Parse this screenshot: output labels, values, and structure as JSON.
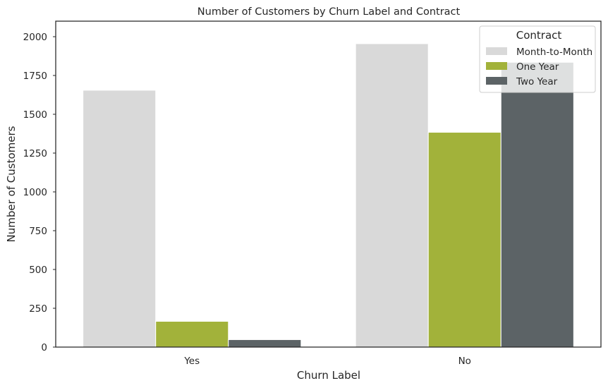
{
  "chart_data": {
    "type": "bar",
    "title": "Number of Customers by Churn Label and Contract",
    "xlabel": "Churn Label",
    "ylabel": "Number of Customers",
    "categories": [
      "Yes",
      "No"
    ],
    "series": [
      {
        "name": "Month-to-Month",
        "color": "#d9d9d9",
        "values": [
          1655,
          1955
        ]
      },
      {
        "name": "One Year",
        "color": "#a2b23a",
        "values": [
          166,
          1384
        ]
      },
      {
        "name": "Two Year",
        "color": "#5c6366",
        "values": [
          48,
          1835
        ]
      }
    ],
    "ylim": [
      0,
      2100
    ],
    "yticks": [
      "0",
      "250",
      "500",
      "750",
      "1000",
      "1250",
      "1500",
      "1750",
      "2000"
    ],
    "legend": {
      "title": "Contract",
      "placement": "top-right"
    },
    "grid": false
  }
}
